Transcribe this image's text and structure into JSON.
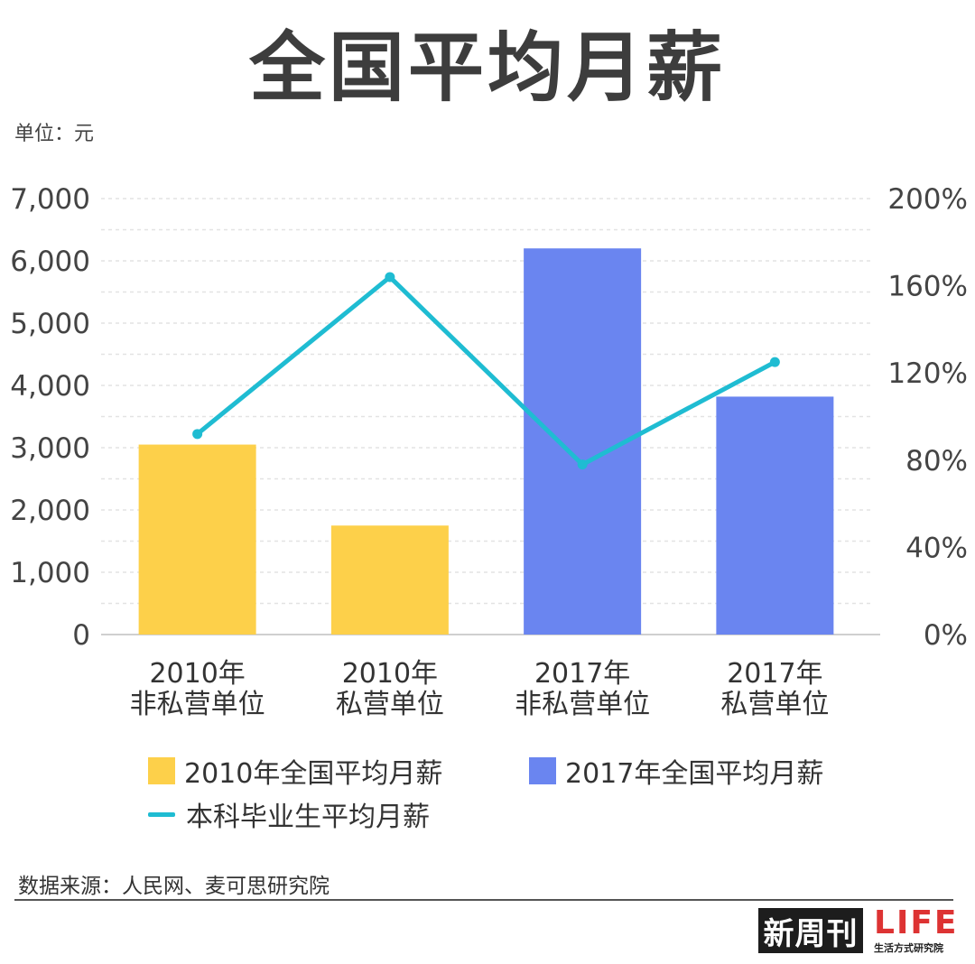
{
  "header": {
    "title": "全国平均月薪",
    "unit": "单位：元"
  },
  "chart_data": {
    "type": "bar",
    "categories": [
      [
        "2010年",
        "非私营单位"
      ],
      [
        "2010年",
        "私营单位"
      ],
      [
        "2017年",
        "非私营单位"
      ],
      [
        "2017年",
        "私营单位"
      ]
    ],
    "series": [
      {
        "name": "2010年全国平均月薪",
        "type": "bar",
        "axis": "left",
        "color": "#fdd04a",
        "values": [
          3050,
          1750,
          null,
          null
        ]
      },
      {
        "name": "2017年全国平均月薪",
        "type": "bar",
        "axis": "left",
        "color": "#6a85f0",
        "values": [
          null,
          null,
          6200,
          3820
        ]
      },
      {
        "name": "本科毕业生平均月薪",
        "type": "line",
        "axis": "right",
        "color": "#1fbcd2",
        "values": [
          92,
          164,
          78,
          125
        ]
      }
    ],
    "y_left": {
      "min": 0,
      "max": 7000,
      "ticks": [
        "0",
        "1,000",
        "2,000",
        "3,000",
        "4,000",
        "5,000",
        "6,000",
        "7,000"
      ]
    },
    "y_right": {
      "min": 0,
      "max": 200,
      "ticks": [
        "0%",
        "40%",
        "80%",
        "120%",
        "160%",
        "200%"
      ]
    },
    "grid": true
  },
  "legend": {
    "items": [
      {
        "label": "2010年全国平均月薪",
        "color": "#fdd04a",
        "kind": "swatch"
      },
      {
        "label": "2017年全国平均月薪",
        "color": "#6a85f0",
        "kind": "swatch"
      },
      {
        "label": "本科毕业生平均月薪",
        "color": "#1fbcd2",
        "kind": "line"
      }
    ]
  },
  "footer": {
    "source": "数据来源：人民网、麦可思研究院",
    "logo_main": "新周刊",
    "logo_life": "LIFE",
    "logo_life_sub": "生活方式研究院"
  }
}
